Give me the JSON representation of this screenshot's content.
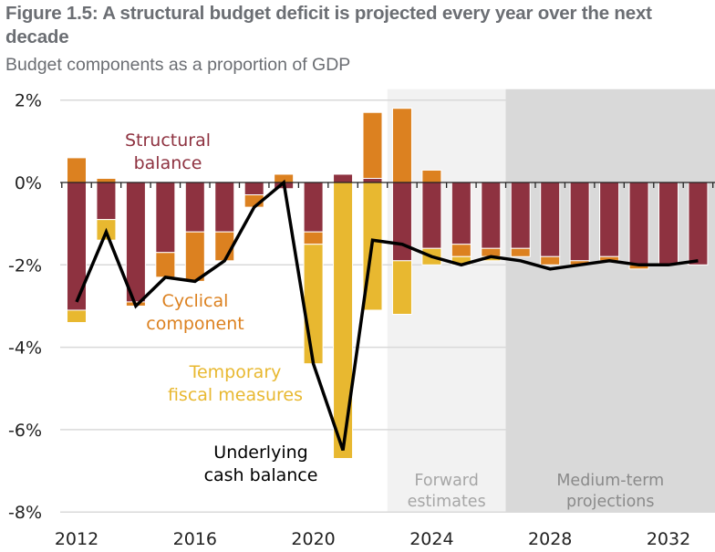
{
  "figure": {
    "title": "Figure 1.5: A structural budget deficit is projected every year over the next decade",
    "subtitle": "Budget components as a proportion of GDP"
  },
  "colors": {
    "structural": "#8e3240",
    "cyclical": "#dc8120",
    "temporary": "#e8b830",
    "underlying": "#000000",
    "forward_shade": "#f2f2f2",
    "medium_shade": "#d9d9d9",
    "gridline": "#d9d9d9",
    "axis_text": "#222222"
  },
  "chart_data": {
    "type": "bar",
    "stacked": true,
    "title": "Figure 1.5: A structural budget deficit is projected every year over the next decade",
    "subtitle": "Budget components as a proportion of GDP",
    "xlabel": "",
    "ylabel": "",
    "ylim": [
      -8,
      2
    ],
    "yticks": [
      2,
      0,
      -2,
      -4,
      -6,
      -8
    ],
    "ytick_labels": [
      "2%",
      "0%",
      "-2%",
      "-4%",
      "-6%",
      "-8%"
    ],
    "grid": true,
    "categories": [
      2012,
      2013,
      2014,
      2015,
      2016,
      2017,
      2018,
      2019,
      2020,
      2021,
      2022,
      2023,
      2024,
      2025,
      2026,
      2027,
      2028,
      2029,
      2030,
      2031,
      2032,
      2033
    ],
    "xtick_labels": [
      "2012",
      "2016",
      "2020",
      "2024",
      "2028",
      "2032"
    ],
    "series": [
      {
        "name": "Structural balance",
        "kind": "bar",
        "values": [
          -3.1,
          -0.9,
          -2.9,
          -1.7,
          -1.2,
          -1.2,
          -0.3,
          -0.15,
          -1.2,
          0.2,
          0.1,
          -1.9,
          -1.6,
          -1.5,
          -1.6,
          -1.6,
          -1.8,
          -1.9,
          -1.8,
          -2.0,
          -2.0,
          -2.0
        ]
      },
      {
        "name": "Cyclical component",
        "kind": "bar",
        "values": [
          0.6,
          0.1,
          -0.1,
          -0.6,
          -1.2,
          -0.7,
          -0.3,
          0.2,
          -0.3,
          0.0,
          1.6,
          1.8,
          0.3,
          -0.3,
          -0.2,
          -0.2,
          -0.2,
          -0.1,
          -0.1,
          -0.1,
          0.0,
          0.0
        ]
      },
      {
        "name": "Temporary fiscal measures",
        "kind": "bar",
        "values": [
          -0.3,
          -0.5,
          0.0,
          0.0,
          0.0,
          0.0,
          0.0,
          0.0,
          -2.9,
          -6.7,
          -3.1,
          -1.3,
          -0.4,
          -0.2,
          -0.1,
          0.0,
          0.0,
          0.0,
          0.0,
          0.0,
          0.0,
          0.0
        ]
      },
      {
        "name": "Underlying cash balance",
        "kind": "line",
        "values": [
          -2.9,
          -1.2,
          -3.0,
          -2.3,
          -2.4,
          -1.9,
          -0.6,
          0.0,
          -4.4,
          -6.5,
          -1.4,
          -1.5,
          -1.8,
          -2.0,
          -1.8,
          -1.9,
          -2.1,
          -2.0,
          -1.9,
          -2.0,
          -2.0,
          -1.9
        ]
      }
    ],
    "annotations": [
      {
        "text": [
          "Structural",
          "balance"
        ],
        "series": "Structural balance"
      },
      {
        "text": [
          "Cyclical",
          "component"
        ],
        "series": "Cyclical component"
      },
      {
        "text": [
          "Temporary",
          "fiscal measures"
        ],
        "series": "Temporary fiscal measures"
      },
      {
        "text": [
          "Underlying",
          "cash balance"
        ],
        "series": "Underlying cash balance"
      }
    ],
    "shaded_periods": [
      {
        "label": [
          "Forward",
          "estimates"
        ],
        "from": 2023,
        "to": 2026
      },
      {
        "label": [
          "Medium-term",
          "projections"
        ],
        "from": 2027,
        "to": 2033
      }
    ],
    "legend": "inline annotations"
  }
}
